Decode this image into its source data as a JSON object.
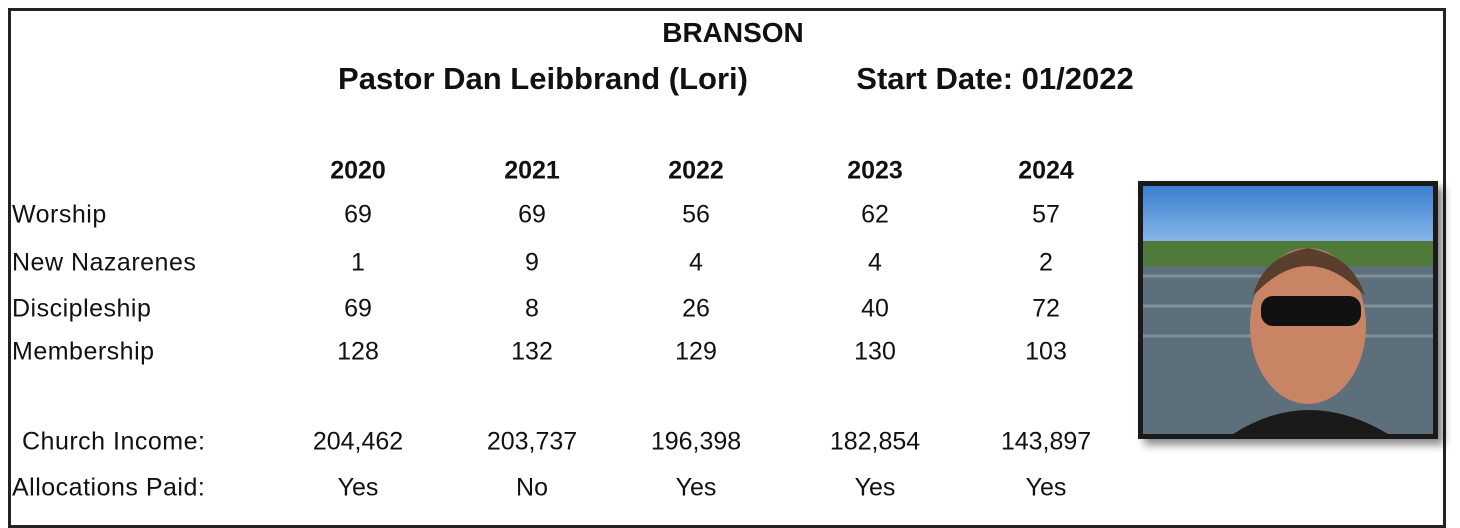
{
  "header": {
    "title": "BRANSON",
    "pastor": "Pastor Dan Leibbrand (Lori)",
    "start_date": "Start Date: 01/2022"
  },
  "table": {
    "years": [
      "2020",
      "2021",
      "2022",
      "2023",
      "2024"
    ],
    "rows": [
      {
        "label": "Worship",
        "values": [
          69,
          69,
          56,
          62,
          57
        ]
      },
      {
        "label": "New Nazarenes",
        "values": [
          1,
          9,
          4,
          4,
          2
        ]
      },
      {
        "label": "Discipleship",
        "values": [
          69,
          8,
          26,
          40,
          72
        ]
      },
      {
        "label": "Membership",
        "values": [
          128,
          132,
          129,
          130,
          103
        ]
      }
    ],
    "finance": [
      {
        "label": "Church Income:",
        "values": [
          "204,462",
          "203,737",
          "196,398",
          "182,854",
          "143,897"
        ]
      },
      {
        "label": "Allocations Paid:",
        "values": [
          "Yes",
          "No",
          "Yes",
          "Yes",
          "Yes"
        ]
      }
    ]
  }
}
